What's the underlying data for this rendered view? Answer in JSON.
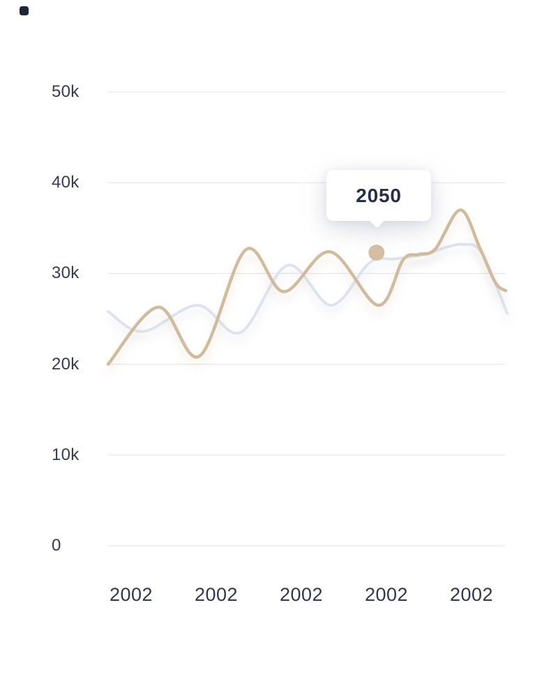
{
  "window": {
    "background": "#ffffff"
  },
  "cursor_indicator": {
    "color": "#1f2735"
  },
  "colors": {
    "gridline": "#e6e7ea",
    "axis_label": "#343b54",
    "primary_line": "#d0bb9c",
    "secondary_line": "#dfe3ee",
    "marker": "#d4bfa0",
    "tooltip_text": "#262e48"
  },
  "chart_data": {
    "type": "line",
    "title": "",
    "xlabel": "",
    "ylabel": "",
    "grid": "horizontal",
    "legend": "none",
    "x_tick_labels": [
      "2002",
      "2002",
      "2002",
      "2002",
      "2002"
    ],
    "y_tick_labels": [
      "50k",
      "40k",
      "30k",
      "20k",
      "10k",
      "0"
    ],
    "ylim": [
      0,
      50000
    ],
    "series": [
      {
        "name": "secondary-line",
        "color": "#dfe3ee",
        "points": [
          {
            "x": 0.0,
            "y": 25800
          },
          {
            "x": 0.088,
            "y": 23600
          },
          {
            "x": 0.225,
            "y": 26500
          },
          {
            "x": 0.333,
            "y": 23500
          },
          {
            "x": 0.451,
            "y": 30900
          },
          {
            "x": 0.561,
            "y": 26500
          },
          {
            "x": 0.658,
            "y": 31200
          },
          {
            "x": 0.719,
            "y": 31600
          },
          {
            "x": 0.798,
            "y": 32100
          },
          {
            "x": 0.851,
            "y": 32900
          },
          {
            "x": 0.895,
            "y": 33200
          },
          {
            "x": 0.939,
            "y": 32300
          },
          {
            "x": 1.004,
            "y": 25600
          }
        ]
      },
      {
        "name": "primary-line",
        "color": "#d0bb9c",
        "points": [
          {
            "x": 0.0,
            "y": 20000
          },
          {
            "x": 0.126,
            "y": 26300
          },
          {
            "x": 0.23,
            "y": 20900
          },
          {
            "x": 0.346,
            "y": 32600
          },
          {
            "x": 0.442,
            "y": 28000
          },
          {
            "x": 0.558,
            "y": 32400
          },
          {
            "x": 0.679,
            "y": 26500
          },
          {
            "x": 0.742,
            "y": 31500
          },
          {
            "x": 0.781,
            "y": 32100
          },
          {
            "x": 0.823,
            "y": 32700
          },
          {
            "x": 0.886,
            "y": 37000
          },
          {
            "x": 0.935,
            "y": 32800
          },
          {
            "x": 0.974,
            "y": 29000
          },
          {
            "x": 1.0,
            "y": 28100
          }
        ]
      }
    ],
    "highlight": {
      "series": "primary-line",
      "x": 0.675,
      "y": 32300,
      "marker_color": "#d4bfa0"
    },
    "tooltip": {
      "label": "2050"
    }
  }
}
